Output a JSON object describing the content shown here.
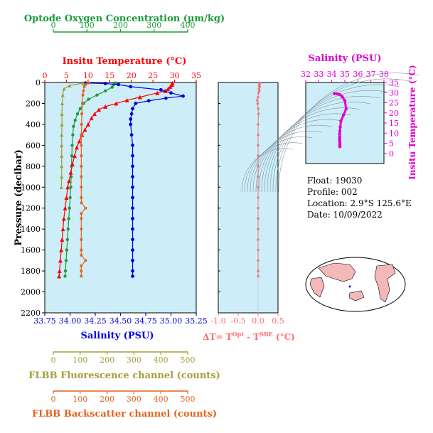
{
  "colors": {
    "panel_bg": "#cdeef8",
    "oxygen": "#1a9c3a",
    "temperature": "#ff0000",
    "salinity": "#0000dd",
    "fluorescence": "#a0a03a",
    "backscatter": "#e0641e",
    "delta_t": "#ff6b6b",
    "ts_trace": "#e000d0",
    "land": "#f4b8b8"
  },
  "labels": {
    "oxygen_axis": "Optode Oxygen Concentration (μm/kg)",
    "temp_axis": "Insitu Temperature (°C)",
    "salinity_axis": "Salinity (PSU)",
    "pressure_axis": "Pressure (decibar)",
    "fluor_axis": "FLBB Fluorescence channel (counts)",
    "backscatter_axis": "FLBB Backscatter channel (counts)",
    "delta_t_axis": "ΔT= T",
    "delta_t_sup1": "Opt",
    "delta_t_mid": " - T",
    "delta_t_sup2": "SBE",
    "delta_t_unit": " (°C)",
    "ts_top_axis": "Salinity (PSU)",
    "ts_right_axis": "Insitu Temperature (°C)"
  },
  "info": {
    "float": "Float:  19030",
    "profile": "Profile:  002",
    "location": "Location:  2.9°S  125.6°E",
    "date": "Date:  10/09/2022"
  },
  "chart_data": [
    {
      "type": "line",
      "title": "",
      "ylabel": "Pressure (decibar)",
      "ylim": [
        2200,
        0
      ],
      "y_ticks": [
        "0",
        "200",
        "400",
        "600",
        "800",
        "1000",
        "1200",
        "1400",
        "1600",
        "1800",
        "2000",
        "2200"
      ],
      "axes": {
        "oxygen": {
          "label": "Optode Oxygen Concentration (μm/kg)",
          "range": [
            0,
            400
          ],
          "ticks": [
            "0",
            "100",
            "200",
            "300",
            "400"
          ]
        },
        "temperature": {
          "label": "Insitu Temperature (°C)",
          "range": [
            0,
            35
          ],
          "ticks": [
            "0",
            "5",
            "10",
            "15",
            "20",
            "25",
            "30",
            "35"
          ]
        },
        "salinity": {
          "label": "Salinity (PSU)",
          "range": [
            33.75,
            35.25
          ],
          "ticks": [
            "33.75",
            "34.00",
            "34.25",
            "34.50",
            "34.75",
            "35.00",
            "35.25"
          ]
        },
        "fluorescence": {
          "label": "FLBB Fluorescence channel (counts)",
          "range": [
            0,
            500
          ],
          "ticks": [
            "0",
            "100",
            "200",
            "300",
            "400",
            "500"
          ]
        },
        "backscatter": {
          "label": "FLBB Backscatter channel (counts)",
          "range": [
            0,
            500
          ],
          "ticks": [
            "0",
            "100",
            "200",
            "300",
            "400",
            "500"
          ]
        }
      },
      "series": [
        {
          "key": "oxygen",
          "axis": "oxygen",
          "points": [
            [
              185,
              5
            ],
            [
              180,
              20
            ],
            [
              175,
              45
            ],
            [
              155,
              80
            ],
            [
              130,
              120
            ],
            [
              105,
              160
            ],
            [
              90,
              200
            ],
            [
              80,
              250
            ],
            [
              72,
              300
            ],
            [
              65,
              360
            ],
            [
              60,
              420
            ],
            [
              58,
              500
            ],
            [
              56,
              600
            ],
            [
              55,
              700
            ],
            [
              54,
              800
            ],
            [
              53,
              900
            ],
            [
              52,
              1000
            ],
            [
              50,
              1100
            ],
            [
              48,
              1200
            ],
            [
              46,
              1300
            ],
            [
              44,
              1400
            ],
            [
              42,
              1500
            ],
            [
              40,
              1600
            ],
            [
              38,
              1700
            ],
            [
              36,
              1800
            ],
            [
              35,
              1850
            ]
          ]
        },
        {
          "key": "temperature",
          "axis": "temperature",
          "points": [
            [
              29.5,
              5
            ],
            [
              29.4,
              20
            ],
            [
              29.0,
              40
            ],
            [
              28.5,
              60
            ],
            [
              27.8,
              80
            ],
            [
              26.0,
              100
            ],
            [
              22.0,
              140
            ],
            [
              19.0,
              170
            ],
            [
              16.5,
              200
            ],
            [
              14.0,
              230
            ],
            [
              12.5,
              260
            ],
            [
              11.5,
              300
            ],
            [
              10.8,
              340
            ],
            [
              10.0,
              400
            ],
            [
              9.3,
              450
            ],
            [
              8.6,
              500
            ],
            [
              8.0,
              560
            ],
            [
              7.4,
              620
            ],
            [
              6.9,
              700
            ],
            [
              6.4,
              780
            ],
            [
              6.0,
              860
            ],
            [
              5.6,
              940
            ],
            [
              5.3,
              1000
            ],
            [
              5.0,
              1100
            ],
            [
              4.7,
              1200
            ],
            [
              4.4,
              1300
            ],
            [
              4.2,
              1400
            ],
            [
              4.0,
              1500
            ],
            [
              3.8,
              1600
            ],
            [
              3.6,
              1700
            ],
            [
              3.4,
              1800
            ],
            [
              3.3,
              1850
            ]
          ]
        },
        {
          "key": "salinity",
          "axis": "salinity",
          "points": [
            [
              34.15,
              5
            ],
            [
              34.35,
              10
            ],
            [
              34.48,
              20
            ],
            [
              34.6,
              40
            ],
            [
              34.9,
              70
            ],
            [
              35.0,
              100
            ],
            [
              35.12,
              130
            ],
            [
              34.95,
              150
            ],
            [
              34.78,
              175
            ],
            [
              34.65,
              200
            ],
            [
              34.62,
              250
            ],
            [
              34.61,
              300
            ],
            [
              34.6,
              350
            ],
            [
              34.6,
              400
            ],
            [
              34.61,
              500
            ],
            [
              34.62,
              600
            ],
            [
              34.62,
              700
            ],
            [
              34.62,
              800
            ],
            [
              34.62,
              900
            ],
            [
              34.62,
              1000
            ],
            [
              34.62,
              1100
            ],
            [
              34.62,
              1200
            ],
            [
              34.62,
              1300
            ],
            [
              34.62,
              1400
            ],
            [
              34.62,
              1500
            ],
            [
              34.62,
              1600
            ],
            [
              34.62,
              1700
            ],
            [
              34.62,
              1800
            ],
            [
              34.62,
              1850
            ]
          ]
        },
        {
          "key": "fluorescence",
          "axis": "fluorescence",
          "points": [
            [
              110,
              5
            ],
            [
              60,
              30
            ],
            [
              40,
              60
            ],
            [
              35,
              120
            ],
            [
              33,
              200
            ],
            [
              32,
              300
            ],
            [
              32,
              400
            ],
            [
              31,
              500
            ],
            [
              31,
              600
            ],
            [
              31,
              700
            ],
            [
              31,
              800
            ],
            [
              31,
              900
            ],
            [
              30,
              1000
            ]
          ]
        },
        {
          "key": "backscatter",
          "axis": "backscatter",
          "points": [
            [
              130,
              5
            ],
            [
              120,
              20
            ],
            [
              115,
              40
            ],
            [
              112,
              80
            ],
            [
              110,
              120
            ],
            [
              108,
              200
            ],
            [
              106,
              300
            ],
            [
              105,
              400
            ],
            [
              104,
              500
            ],
            [
              104,
              600
            ],
            [
              104,
              700
            ],
            [
              104,
              800
            ],
            [
              104,
              900
            ],
            [
              104,
              1000
            ],
            [
              104,
              1100
            ],
            [
              105,
              1150
            ],
            [
              120,
              1200
            ],
            [
              104,
              1250
            ],
            [
              104,
              1300
            ],
            [
              104,
              1400
            ],
            [
              104,
              1500
            ],
            [
              104,
              1600
            ],
            [
              104,
              1650
            ],
            [
              120,
              1700
            ],
            [
              104,
              1750
            ],
            [
              104,
              1800
            ],
            [
              104,
              1850
            ]
          ]
        }
      ]
    },
    {
      "type": "line",
      "xlabel": "ΔT= TOpt - TSBE (°C)",
      "xlim": [
        -1.0,
        0.5
      ],
      "x_ticks": [
        "-1.0",
        "-0.5",
        "0.0",
        "0.5"
      ],
      "series": [
        {
          "name": "",
          "values": [
            [
              0.05,
              5
            ],
            [
              0.03,
              20
            ],
            [
              0.04,
              40
            ],
            [
              0.02,
              60
            ],
            [
              0.03,
              80
            ],
            [
              0.01,
              100
            ],
            [
              0.0,
              140
            ],
            [
              -0.02,
              170
            ],
            [
              -0.01,
              200
            ],
            [
              0.0,
              250
            ],
            [
              0.01,
              300
            ],
            [
              0.0,
              400
            ],
            [
              0.0,
              500
            ],
            [
              0.0,
              600
            ],
            [
              0.0,
              700
            ],
            [
              0.0,
              800
            ],
            [
              0.0,
              900
            ],
            [
              0.0,
              1000
            ],
            [
              0.0,
              1100
            ],
            [
              0.0,
              1200
            ],
            [
              0.0,
              1300
            ],
            [
              0.0,
              1400
            ],
            [
              0.0,
              1500
            ],
            [
              0.0,
              1600
            ],
            [
              0.0,
              1700
            ],
            [
              0.0,
              1800
            ],
            [
              0.0,
              1850
            ]
          ]
        }
      ]
    },
    {
      "type": "scatter",
      "xlabel": "Salinity (PSU)",
      "ylabel": "Insitu Temperature (°C)",
      "xlim": [
        32,
        38
      ],
      "ylim": [
        -5,
        35
      ],
      "x_ticks": [
        "32",
        "33",
        "34",
        "35",
        "36",
        "37",
        "38"
      ],
      "y_ticks": [
        "0",
        "5",
        "10",
        "15",
        "20",
        "25",
        "30",
        "35"
      ],
      "points": [
        [
          34.2,
          29.5
        ],
        [
          34.4,
          29.4
        ],
        [
          34.6,
          29.0
        ],
        [
          34.8,
          28.0
        ],
        [
          35.0,
          26.0
        ],
        [
          35.1,
          22.0
        ],
        [
          34.9,
          19.0
        ],
        [
          34.7,
          16.0
        ],
        [
          34.65,
          13.0
        ],
        [
          34.62,
          11.0
        ],
        [
          34.6,
          9.5
        ],
        [
          34.6,
          8.0
        ],
        [
          34.6,
          7.0
        ],
        [
          34.61,
          6.0
        ],
        [
          34.62,
          5.0
        ],
        [
          34.62,
          4.5
        ],
        [
          34.62,
          4.0
        ],
        [
          34.62,
          3.5
        ],
        [
          34.62,
          3.3
        ]
      ]
    }
  ]
}
